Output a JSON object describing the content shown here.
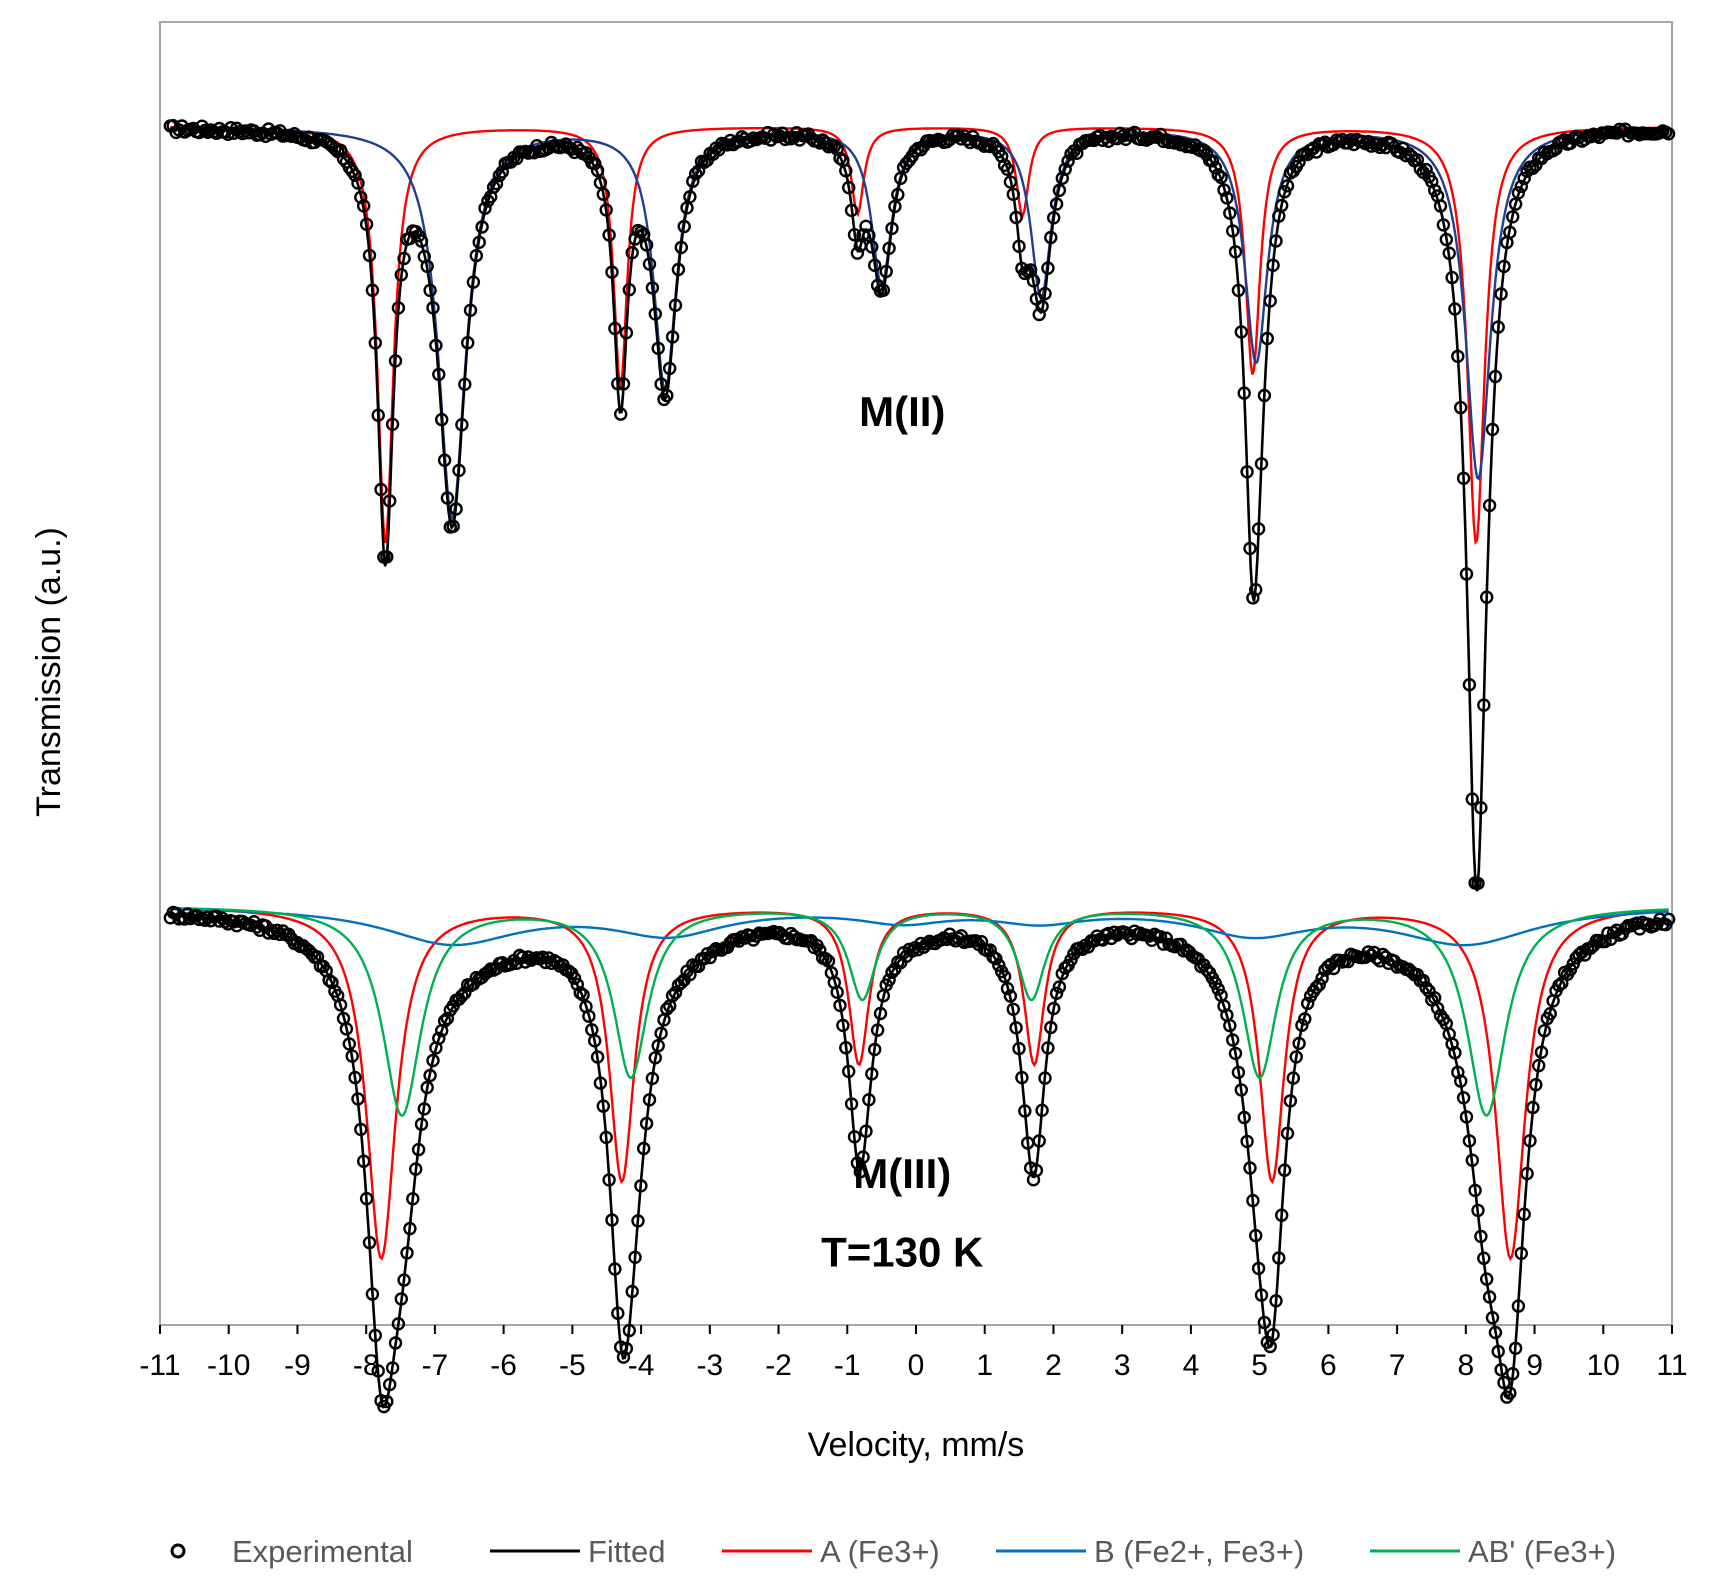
{
  "chart_data": {
    "type": "line",
    "title": "",
    "xlabel": "Velocity, mm/s",
    "ylabel": "Transmission (a.u.)",
    "xlim": [
      -11,
      11
    ],
    "ylim": [
      0,
      1
    ],
    "x_ticks": [
      -11,
      -10,
      -9,
      -8,
      -7,
      -6,
      -5,
      -4,
      -3,
      -2,
      -1,
      0,
      1,
      2,
      3,
      4,
      5,
      6,
      7,
      8,
      9,
      10,
      11
    ],
    "y_ticks": [],
    "grid": false,
    "legend_position": "bottom",
    "legend": [
      {
        "key": "experimental",
        "label": "Experimental",
        "color": "#000000",
        "style": "open-circle"
      },
      {
        "key": "fitted",
        "label": "Fitted",
        "color": "#000000",
        "style": "line"
      },
      {
        "key": "A",
        "label": "A (Fe3+)",
        "color": "#ff0000",
        "style": "line"
      },
      {
        "key": "B",
        "label": "B (Fe2+, Fe3+)",
        "color": "#0070c0",
        "style": "line"
      },
      {
        "key": "AB",
        "label": "AB' (Fe3+)",
        "color": "#00b050",
        "style": "line"
      }
    ],
    "annotations": [
      {
        "text": "M(II)",
        "x": -0.2,
        "y": 0.69
      },
      {
        "text": "M(III)",
        "x": -0.2,
        "y": 0.105
      },
      {
        "text": "T=130 K",
        "x": -0.2,
        "y": 0.045
      }
    ],
    "spectra": [
      {
        "name": "M(II)",
        "baseline": 0.92,
        "components": [
          {
            "series": "A",
            "color": "#ff0000",
            "lines": [
              [
                -7.72,
                0.32,
                0.14
              ],
              [
                -4.3,
                0.2,
                0.12
              ],
              [
                -0.85,
                0.067,
                0.11
              ],
              [
                1.55,
                0.068,
                0.11
              ],
              [
                4.9,
                0.19,
                0.13
              ],
              [
                8.15,
                0.32,
                0.15
              ]
            ]
          },
          {
            "series": "B",
            "color": "#1f3f8f",
            "lines": [
              [
                -6.75,
                0.3,
                0.24
              ],
              [
                -3.65,
                0.2,
                0.2
              ],
              [
                -0.5,
                0.12,
                0.18
              ],
              [
                1.82,
                0.13,
                0.18
              ],
              [
                4.95,
                0.18,
                0.2
              ],
              [
                8.18,
                0.27,
                0.22
              ]
            ]
          }
        ]
      },
      {
        "name": "M(III) T=130 K",
        "baseline": 0.322,
        "components": [
          {
            "series": "A",
            "color": "#ff0000",
            "lines": [
              [
                -7.78,
                0.27,
                0.26
              ],
              [
                -4.28,
                0.21,
                0.22
              ],
              [
                -0.83,
                0.12,
                0.18
              ],
              [
                1.72,
                0.12,
                0.18
              ],
              [
                5.18,
                0.21,
                0.22
              ],
              [
                8.65,
                0.27,
                0.26
              ]
            ]
          },
          {
            "series": "B",
            "color": "#0070c0",
            "lines": [
              [
                -6.75,
                0.028,
                1.2
              ],
              [
                -3.6,
                0.02,
                1.0
              ],
              [
                -0.2,
                0.01,
                0.8
              ],
              [
                1.8,
                0.01,
                0.8
              ],
              [
                4.9,
                0.02,
                1.0
              ],
              [
                8.0,
                0.028,
                1.2
              ]
            ]
          },
          {
            "series": "AB",
            "color": "#00b050",
            "lines": [
              [
                -7.48,
                0.16,
                0.34
              ],
              [
                -4.15,
                0.13,
                0.3
              ],
              [
                -0.78,
                0.07,
                0.24
              ],
              [
                1.68,
                0.07,
                0.24
              ],
              [
                5.0,
                0.13,
                0.3
              ],
              [
                8.3,
                0.16,
                0.34
              ]
            ]
          }
        ]
      }
    ]
  }
}
